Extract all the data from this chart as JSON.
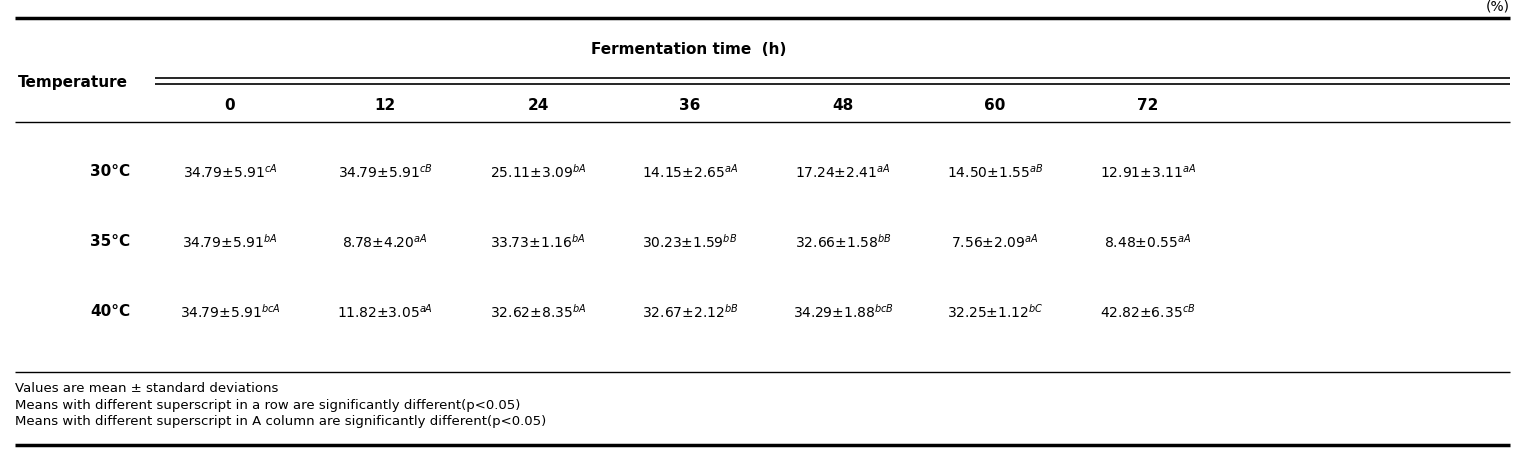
{
  "unit_label": "(%)",
  "header_main": "Fermentation time  (h)",
  "col_header": [
    "0",
    "12",
    "24",
    "36",
    "48",
    "60",
    "72"
  ],
  "row_header_label": "Temperature",
  "rows": [
    {
      "temp": "30°C",
      "values": [
        "34.79±5.91$^{cA}$",
        "34.79±5.91$^{cB}$",
        "25.11±3.09$^{bA}$",
        "14.15±2.65$^{aA}$",
        "17.24±2.41$^{aA}$",
        "14.50±1.55$^{aB}$",
        "12.91±3.11$^{aA}$"
      ]
    },
    {
      "temp": "35°C",
      "values": [
        "34.79±5.91$^{bA}$",
        "8.78±4.20$^{aA}$",
        "33.73±1.16$^{bA}$",
        "30.23±1.59$^{bB}$",
        "32.66±1.58$^{bB}$",
        "7.56±2.09$^{aA}$",
        "8.48±0.55$^{aA}$"
      ]
    },
    {
      "temp": "40°C",
      "values": [
        "34.79±5.91$^{bcA}$",
        "11.82±3.05$^{aA}$",
        "32.62±8.35$^{bA}$",
        "32.67±2.12$^{bB}$",
        "34.29±1.88$^{bcB}$",
        "32.25±1.12$^{bC}$",
        "42.82±6.35$^{cB}$"
      ]
    }
  ],
  "footnotes": [
    "Values are mean ± standard deviations",
    "Means with different superscript in a row are significantly different(p<0.05)",
    "Means with different superscript in A column are significantly different(p<0.05)"
  ],
  "bg_color": "white",
  "text_color": "black",
  "header_fontsize": 11,
  "cell_fontsize": 10,
  "footnote_fontsize": 9.5,
  "temp_fontsize": 11
}
